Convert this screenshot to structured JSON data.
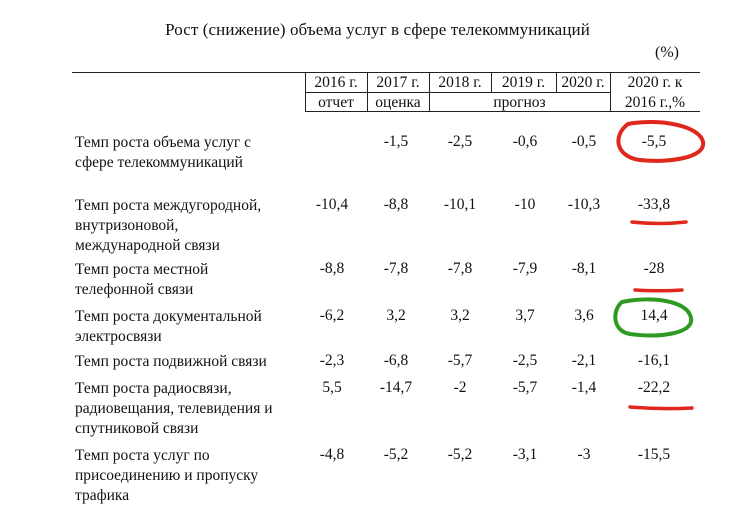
{
  "title": "Рост (снижение) объема услуг в сфере телекоммуникаций",
  "unit": "(%)",
  "header": {
    "years": [
      "2016 г.",
      "2017 г.",
      "2018 г.",
      "2019 г.",
      "2020 г."
    ],
    "sub": [
      "отчет",
      "оценка",
      "прогноз"
    ],
    "last_line1": "2020 г. к",
    "last_line2": "2016 г.,%"
  },
  "rows": [
    {
      "label": "Темп роста объема услуг с\nсфере телекоммуникаций",
      "values": [
        "",
        "-1,5",
        "-2,5",
        "-0,6",
        "-0,5",
        "-5,5"
      ]
    },
    {
      "label": "Темп роста междугородной,\nвнутризоновой,\nмеждународной связи",
      "values": [
        "-10,4",
        "-8,8",
        "-10,1",
        "-10",
        "-10,3",
        "-33,8"
      ]
    },
    {
      "label": "Темп роста местной\nтелефонной связи",
      "values": [
        "-8,8",
        "-7,8",
        "-7,8",
        "-7,9",
        "-8,1",
        "-28"
      ]
    },
    {
      "label": "Темп роста документальной\nэлектросвязи",
      "values": [
        "-6,2",
        "3,2",
        "3,2",
        "3,7",
        "3,6",
        "14,4"
      ]
    },
    {
      "label": "Темп роста подвижной связи",
      "values": [
        "-2,3",
        "-6,8",
        "-5,7",
        "-2,5",
        "-2,1",
        "-16,1"
      ]
    },
    {
      "label": "Темп роста радиосвязи,\nрадиовещания, телевидения и\nспутниковой связи",
      "values": [
        "5,5",
        "-14,7",
        "-2",
        "-5,7",
        "-1,4",
        "-22,2"
      ]
    },
    {
      "label": "Темп роста услуг по\nприсоединению и пропуску\nтрафика",
      "values": [
        "-4,8",
        "-5,2",
        "-5,2",
        "-3,1",
        "-3",
        "-15,5"
      ]
    }
  ],
  "annotation_colors": {
    "red": "#e0271b",
    "green": "#2e9a22"
  }
}
